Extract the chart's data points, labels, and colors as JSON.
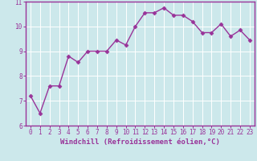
{
  "x": [
    0,
    1,
    2,
    3,
    4,
    5,
    6,
    7,
    8,
    9,
    10,
    11,
    12,
    13,
    14,
    15,
    16,
    17,
    18,
    19,
    20,
    21,
    22,
    23
  ],
  "y": [
    7.2,
    6.5,
    7.6,
    7.6,
    8.8,
    8.55,
    9.0,
    9.0,
    9.0,
    9.45,
    9.25,
    10.0,
    10.55,
    10.55,
    10.75,
    10.45,
    10.45,
    10.2,
    9.75,
    9.75,
    10.1,
    9.6,
    9.85,
    9.45
  ],
  "line_color": "#993399",
  "marker": "D",
  "marker_size": 2.5,
  "bg_color": "#cce8eb",
  "grid_color": "#ffffff",
  "xlabel": "Windchill (Refroidissement éolien,°C)",
  "xlabel_color": "#993399",
  "tick_color": "#993399",
  "spine_color": "#993399",
  "ylim": [
    6,
    11
  ],
  "xlim": [
    -0.5,
    23.5
  ],
  "yticks": [
    6,
    7,
    8,
    9,
    10,
    11
  ],
  "ytick_labels": [
    "6",
    "7",
    "8",
    "9",
    "10",
    "11"
  ],
  "xticks": [
    0,
    1,
    2,
    3,
    4,
    5,
    6,
    7,
    8,
    9,
    10,
    11,
    12,
    13,
    14,
    15,
    16,
    17,
    18,
    19,
    20,
    21,
    22,
    23
  ],
  "xtick_labels": [
    "0",
    "1",
    "2",
    "3",
    "4",
    "5",
    "6",
    "7",
    "8",
    "9",
    "10",
    "11",
    "12",
    "13",
    "14",
    "15",
    "16",
    "17",
    "18",
    "19",
    "20",
    "21",
    "22",
    "23"
  ],
  "tick_fontsize": 5.5,
  "xlabel_fontsize": 6.5,
  "linewidth": 1.0
}
